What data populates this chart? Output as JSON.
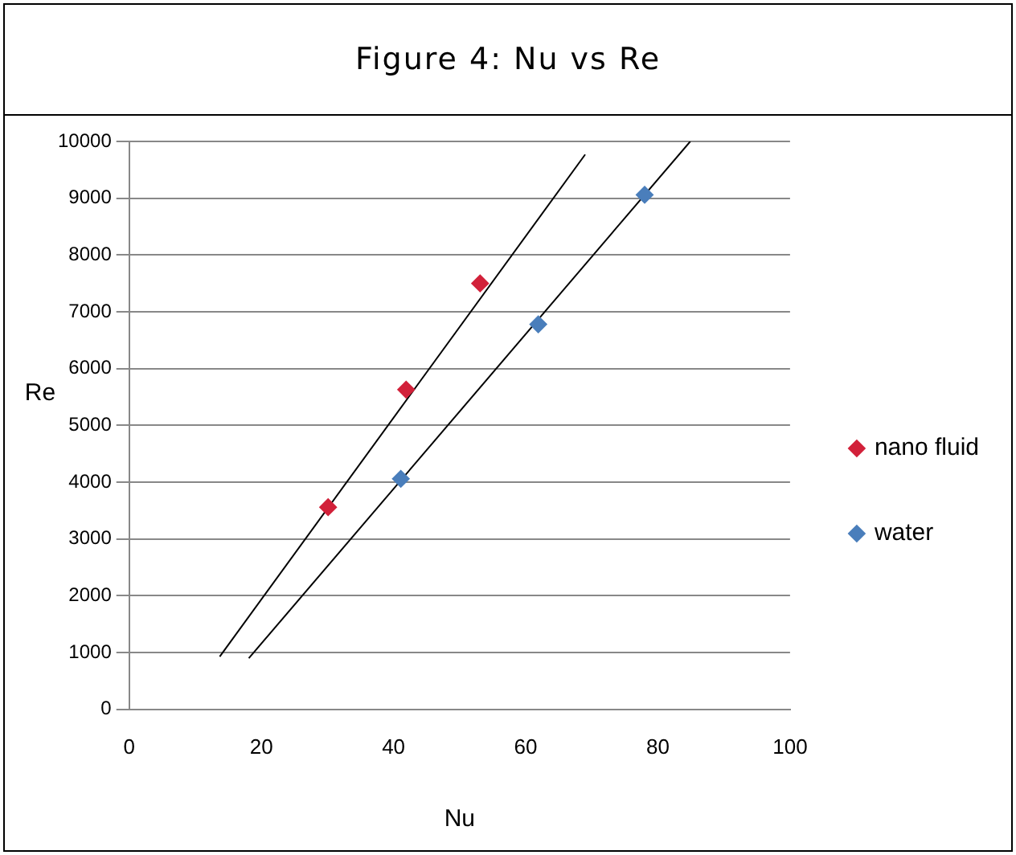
{
  "chart_data": {
    "type": "scatter",
    "title": "Figure 4: Nu vs Re",
    "xlabel": "Nu",
    "ylabel": "Re",
    "xlim": [
      0,
      100
    ],
    "xticks": [
      0,
      20,
      40,
      60,
      80,
      100
    ],
    "ylim": [
      0,
      10000
    ],
    "yticks": [
      0,
      1000,
      2000,
      3000,
      4000,
      5000,
      6000,
      7000,
      8000,
      9000,
      10000
    ],
    "grid": "y",
    "legend": "right",
    "marker": "diamond",
    "series": [
      {
        "name": "nano fluid",
        "color": "#d2213a",
        "x": [
          30.1,
          41.9,
          53.1
        ],
        "values": [
          3560,
          5630,
          7500
        ]
      },
      {
        "name": "water",
        "color": "#4a7ebb",
        "x": [
          41.1,
          61.9,
          78
        ],
        "values": [
          4060,
          6780,
          9060
        ]
      },
      {
        "type": "line",
        "color": "#000000",
        "x": [
          13.7,
          69
        ],
        "values": [
          930,
          9770
        ],
        "marker": "none"
      },
      {
        "type": "line",
        "color": "#000000",
        "x": [
          18.1,
          84.9
        ],
        "values": [
          900,
          10000
        ],
        "marker": "none"
      }
    ]
  }
}
